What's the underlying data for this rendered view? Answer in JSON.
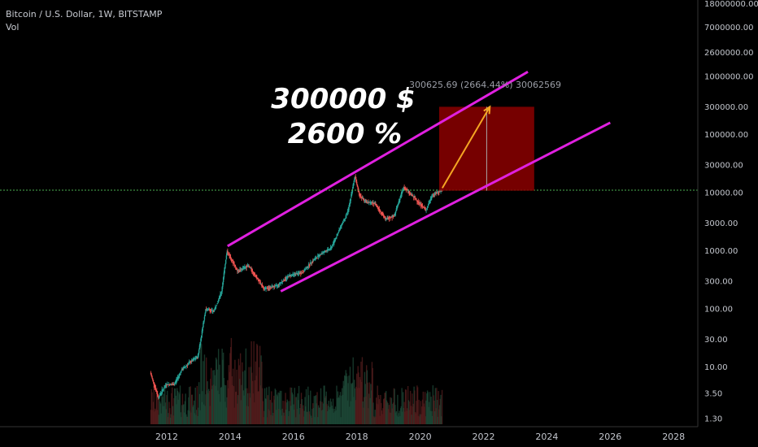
{
  "header": {
    "title": "Bitcoin / U.S. Dollar, 1W, BITSTAMP",
    "volume_label": "Vol"
  },
  "annotation": {
    "target_price": "300000 $",
    "target_percent": "2600 %",
    "measure_label": "300625.69 (2664.44%) 30062569"
  },
  "colors": {
    "background": "#000000",
    "channel": "#e020e0",
    "target_box": "#8b0000",
    "arrow": "#f5a623",
    "candle_up": "#26a69a",
    "candle_down": "#ef5350",
    "price_line": "#4caf50"
  },
  "chart_data": {
    "type": "candlestick",
    "title": "Bitcoin / U.S. Dollar, 1W, BITSTAMP",
    "y_scale": "log",
    "y_tick_labels": [
      "18000000.00",
      "7000000.00",
      "2600000.00",
      "1000000.00",
      "300000.00",
      "100000.00",
      "30000.00",
      "10000.00",
      "3000.00",
      "1000.00",
      "300.00",
      "100.00",
      "30.00",
      "10.00",
      "3.50",
      "1.30"
    ],
    "y_ticks": [
      18000000,
      7000000,
      2600000,
      1000000,
      300000,
      100000,
      30000,
      10000,
      3000,
      1000,
      300,
      100,
      30,
      10,
      3.5,
      1.3
    ],
    "x_tick_labels": [
      "2012",
      "2014",
      "2016",
      "2018",
      "2020",
      "2022",
      "2024",
      "2026",
      "2028"
    ],
    "x_ticks": [
      2012,
      2014,
      2016,
      2018,
      2020,
      2022,
      2024,
      2026,
      2028
    ],
    "price_path": [
      [
        2011.5,
        8
      ],
      [
        2011.75,
        3
      ],
      [
        2012.0,
        5
      ],
      [
        2012.25,
        5
      ],
      [
        2012.5,
        9
      ],
      [
        2012.75,
        12
      ],
      [
        2013.0,
        15
      ],
      [
        2013.25,
        100
      ],
      [
        2013.5,
        90
      ],
      [
        2013.75,
        200
      ],
      [
        2013.92,
        1000
      ],
      [
        2014.25,
        450
      ],
      [
        2014.6,
        550
      ],
      [
        2014.9,
        320
      ],
      [
        2015.1,
        220
      ],
      [
        2015.5,
        250
      ],
      [
        2015.9,
        380
      ],
      [
        2016.3,
        420
      ],
      [
        2016.6,
        650
      ],
      [
        2016.9,
        900
      ],
      [
        2017.2,
        1100
      ],
      [
        2017.5,
        2500
      ],
      [
        2017.75,
        5000
      ],
      [
        2017.96,
        19000
      ],
      [
        2018.1,
        9000
      ],
      [
        2018.3,
        7000
      ],
      [
        2018.6,
        6500
      ],
      [
        2018.92,
        3500
      ],
      [
        2019.2,
        4000
      ],
      [
        2019.5,
        12500
      ],
      [
        2019.9,
        7500
      ],
      [
        2020.2,
        5000
      ],
      [
        2020.4,
        9000
      ],
      [
        2020.7,
        11000
      ]
    ],
    "current_price": 11000,
    "channel_upper": [
      [
        2013.92,
        1200
      ],
      [
        2023.4,
        1200000
      ]
    ],
    "channel_lower": [
      [
        2015.6,
        200
      ],
      [
        2026.0,
        160000
      ]
    ],
    "target_box": {
      "x0": 2020.6,
      "x1": 2023.6,
      "y_low": 10800,
      "y_high": 300000
    },
    "arrow": {
      "from": [
        2020.7,
        12000
      ],
      "to": [
        2022.2,
        300000
      ]
    }
  }
}
